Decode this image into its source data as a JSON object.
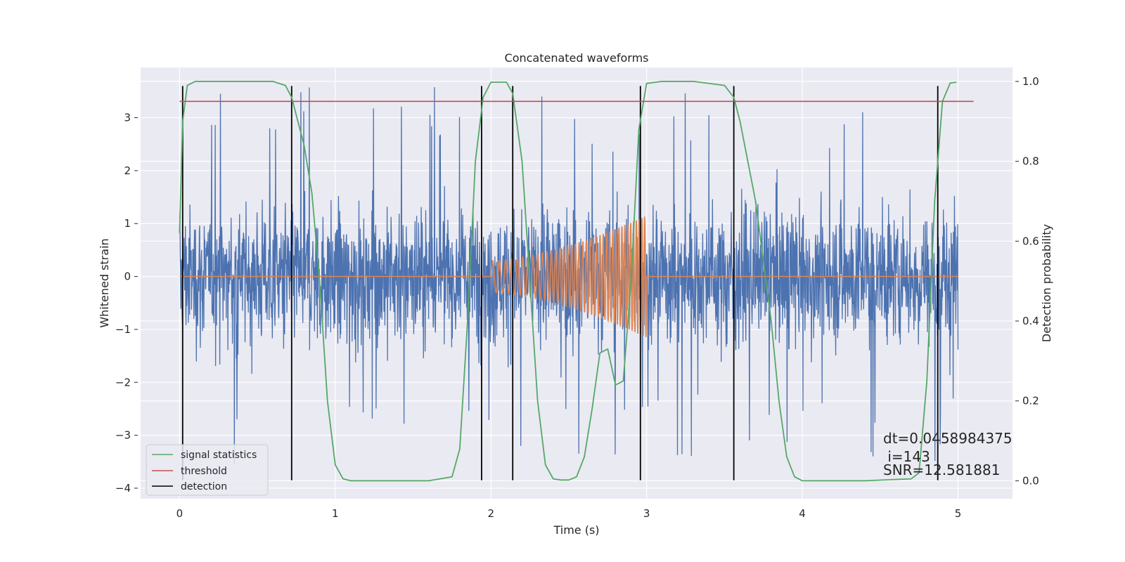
{
  "chart_data": {
    "type": "line",
    "title": "Concatenated waveforms",
    "xlabel": "Time (s)",
    "ylabel": "Whitened strain",
    "y2label": "Detection probability",
    "xlim": [
      -0.25,
      5.35
    ],
    "ylim": [
      -4.2,
      3.95
    ],
    "y2lim": [
      -0.045,
      1.035
    ],
    "x_ticks": [
      0,
      1,
      2,
      3,
      4,
      5
    ],
    "y_ticks": [
      -4,
      -3,
      -2,
      -1,
      0,
      1,
      2,
      3
    ],
    "y2_ticks": [
      0.0,
      0.2,
      0.4,
      0.6,
      0.8,
      1.0
    ],
    "x_tick_labels": [
      "0",
      "1",
      "2",
      "3",
      "4",
      "5"
    ],
    "y_tick_labels": [
      "−4",
      "−3",
      "−2",
      "−1",
      "0",
      "1",
      "2",
      "3"
    ],
    "y2_tick_labels": [
      "0.0",
      "0.2",
      "0.4",
      "0.6",
      "0.8",
      "1.0"
    ],
    "grid": true,
    "legend_position": "lower-left",
    "background": "#EAEAF2",
    "colors": {
      "noise": "#4C72B0",
      "template": "#DD8452",
      "signal_statistics": "#55A868",
      "threshold": "#C44E52",
      "detection": "#000000"
    },
    "series": [
      {
        "name": "signal statistics",
        "axis": "right",
        "style": "line",
        "x": [
          0.0,
          0.02,
          0.05,
          0.1,
          0.3,
          0.6,
          0.68,
          0.72,
          0.8,
          0.85,
          0.9,
          0.95,
          1.0,
          1.05,
          1.1,
          1.3,
          1.6,
          1.75,
          1.8,
          1.85,
          1.9,
          1.95,
          2.0,
          2.1,
          2.14,
          2.2,
          2.25,
          2.3,
          2.35,
          2.4,
          2.45,
          2.5,
          2.55,
          2.6,
          2.65,
          2.7,
          2.75,
          2.8,
          2.85,
          2.9,
          2.95,
          3.0,
          3.1,
          3.3,
          3.5,
          3.56,
          3.6,
          3.7,
          3.8,
          3.85,
          3.9,
          3.95,
          4.0,
          4.1,
          4.4,
          4.7,
          4.75,
          4.8,
          4.85,
          4.9,
          4.95,
          4.99
        ],
        "y": [
          0.62,
          0.9,
          0.99,
          1.0,
          1.0,
          1.0,
          0.99,
          0.96,
          0.84,
          0.72,
          0.5,
          0.2,
          0.04,
          0.005,
          0.0,
          0.0,
          0.0,
          0.01,
          0.08,
          0.4,
          0.8,
          0.96,
          0.998,
          0.998,
          0.97,
          0.8,
          0.5,
          0.2,
          0.04,
          0.005,
          0.002,
          0.002,
          0.01,
          0.06,
          0.18,
          0.32,
          0.33,
          0.24,
          0.25,
          0.5,
          0.88,
          0.995,
          1.0,
          1.0,
          0.99,
          0.96,
          0.9,
          0.7,
          0.4,
          0.2,
          0.06,
          0.01,
          0.0,
          0.0,
          0.0,
          0.005,
          0.02,
          0.25,
          0.7,
          0.95,
          0.996,
          0.998
        ]
      },
      {
        "name": "threshold",
        "axis": "right",
        "style": "line",
        "x": [
          0.0,
          5.1
        ],
        "y": [
          0.95,
          0.95
        ]
      },
      {
        "name": "detection",
        "axis": "left",
        "style": "vlines",
        "x": [
          0.02,
          0.72,
          1.94,
          2.14,
          2.96,
          3.56,
          4.87
        ],
        "y_range": [
          -3.85,
          3.6
        ]
      },
      {
        "axis": "left",
        "style": "line",
        "x": [
          0,
          2.0,
          2.0,
          3.0,
          3.0,
          5.0
        ],
        "y": [
          0,
          0,
          0,
          0,
          0,
          0
        ],
        "chirp": {
          "x_start": 2.0,
          "x_end": 3.0,
          "amp_start": 0.3,
          "amp_end": 1.15,
          "cycles": 40
        }
      },
      {
        "axis": "left",
        "style": "noise",
        "x_range": [
          0.0,
          5.0
        ],
        "typical_range": [
          -1.5,
          1.5
        ],
        "extremes": [
          -3.8,
          3.6
        ]
      }
    ],
    "annotations": [
      "dt=0.0458984375",
      " i=143",
      "SNR=12.581881"
    ]
  },
  "legend": {
    "items": [
      {
        "label": "signal statistics",
        "color": "#55A868"
      },
      {
        "label": "threshold",
        "color": "#C44E52"
      },
      {
        "label": "detection",
        "color": "#000000"
      }
    ]
  }
}
